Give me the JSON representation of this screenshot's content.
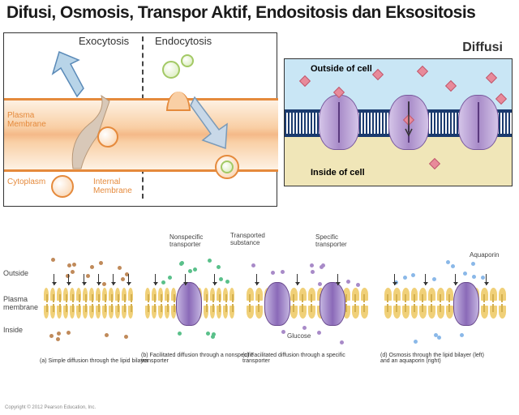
{
  "title": "Difusi, Osmosis, Transpor Aktif, Endositosis dan Eksositosis",
  "left_panel": {
    "title_exo": "Exocytosis",
    "title_endo": "Endocytosis",
    "plasma_label": "Plasma\nMembrane",
    "cytoplasm_label": "Cytoplasm",
    "internal_label": "Internal\nMembrane",
    "membrane_color": "#e58a3c",
    "flesh_color": "#f9cfa5",
    "vesicle_green": "#a3c965"
  },
  "right_panel": {
    "title": "Diffusi",
    "outside_label": "Outside of cell",
    "inside_label": "Inside of cell",
    "outside_color": "#c9e6f5",
    "inside_color": "#f0e6b8",
    "membrane_color": "#1a3a6e",
    "protein_color": "#a88bc8",
    "cube_color": "#e88a9a"
  },
  "bottom_panel": {
    "row_outside": "Outside",
    "row_plasma": "Plasma\nmembrane",
    "row_inside": "Inside",
    "sublabel_nonspecific": "Nonspecific\ntransporter",
    "sublabel_transported": "Transported\nsubstance",
    "sublabel_specific": "Specific\ntransporter",
    "sublabel_glucose": "Glucose",
    "sublabel_aquaporin": "Aquaporin",
    "captions": [
      "(a) Simple diffusion through the lipid bilayer",
      "(b) Facilitated diffusion through a nonspecific transporter",
      "(c) Facilitated diffusion through a specific transporter",
      "(d) Osmosis through the lipid bilayer (left) and an aquaporin (right)"
    ],
    "lipid_color": "#f0d078",
    "protein_color": "#8a6ab8"
  },
  "copyright": "Copyright © 2012 Pearson Education, Inc."
}
